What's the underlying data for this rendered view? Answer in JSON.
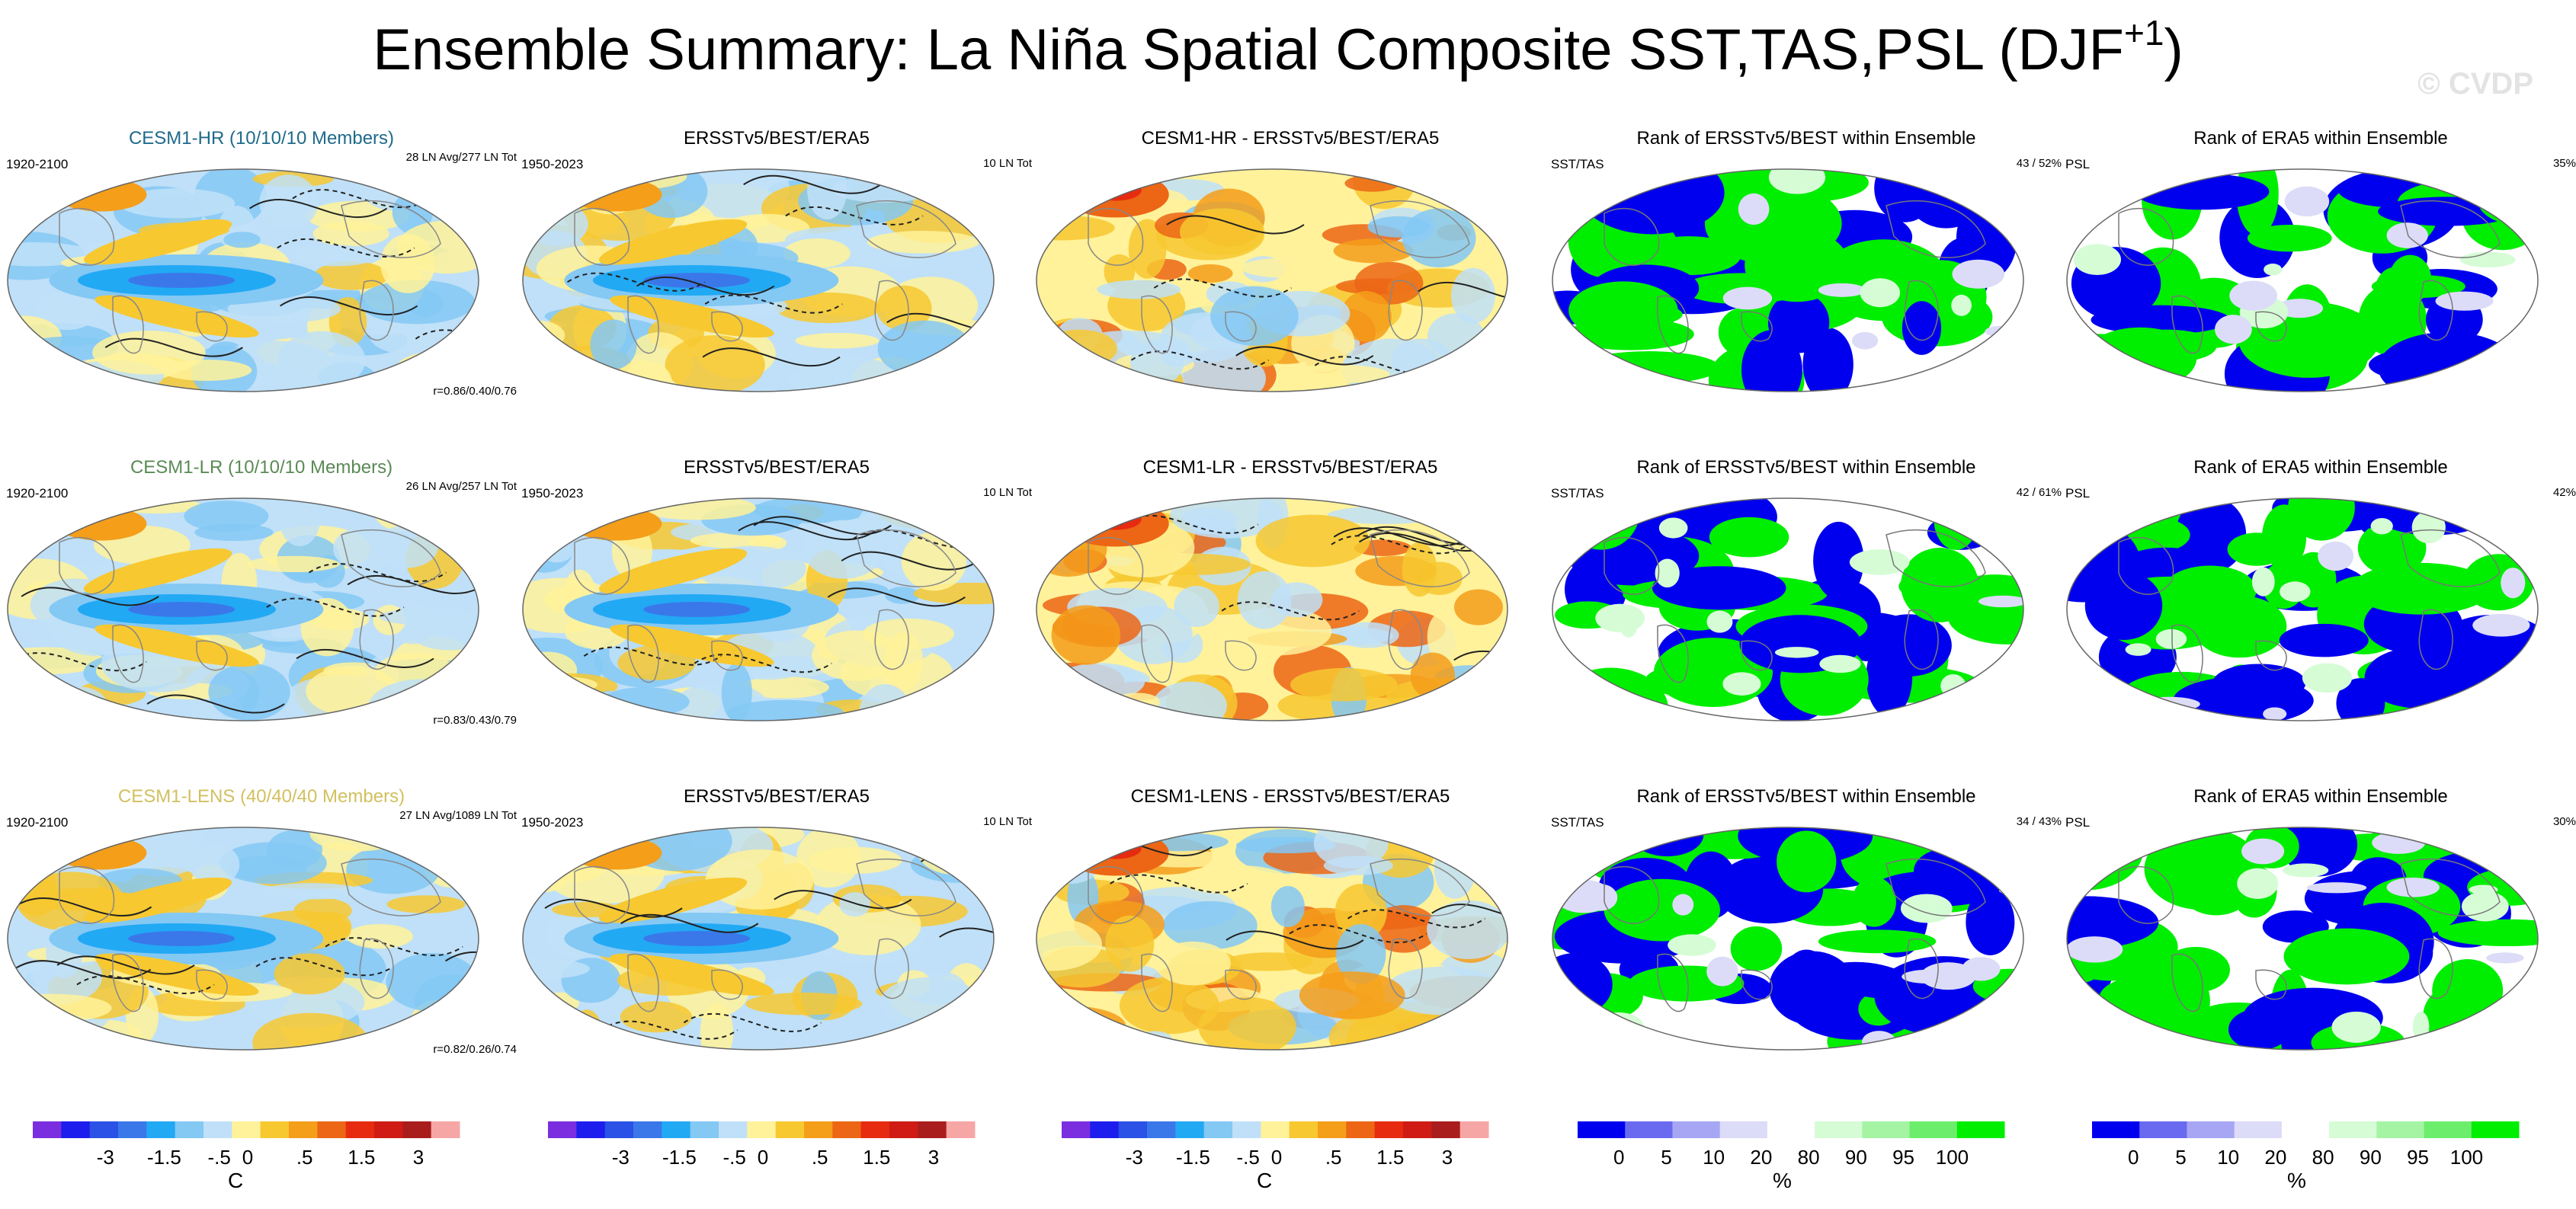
{
  "header": {
    "title": "Ensemble Summary: La Niña Spatial Composite SST,TAS,PSL (DJF",
    "title_sup": "+1",
    "title_close": ")",
    "watermark": "© CVDP"
  },
  "colors": {
    "anomaly_palette": [
      "#7b2ee0",
      "#1d1ded",
      "#2a52e6",
      "#3a78ea",
      "#22a9f4",
      "#84c8f4",
      "#bfe0f8",
      "#fff29a",
      "#f7c830",
      "#f49e1a",
      "#ec6615",
      "#e72b10",
      "#cf1b14",
      "#aa1d1d",
      "#f7a6a6"
    ],
    "rank_palette": [
      "#0000ee",
      "#6a6af0",
      "#a6a6f4",
      "#dcdcf8",
      "#ffffff",
      "#d6fcd6",
      "#a4f4a4",
      "#6cee6c",
      "#00ee00"
    ],
    "land": "#ffffff",
    "rank_low": "#0000ee",
    "rank_high": "#00ee00"
  },
  "rows": [
    {
      "model_label": "CESM1-HR (10/10/10 Members)",
      "model_color": "#1f6a8a",
      "panels": [
        {
          "title": "CESM1-HR (10/10/10 Members)",
          "left": "1920-2100",
          "right": "28 LN Avg/277 LN Tot",
          "corr": "r=0.86/0.40/0.76",
          "kind": "anomaly"
        },
        {
          "title": "ERSSTv5/BEST/ERA5",
          "left": "1950-2023",
          "right": "10 LN Tot",
          "corr": "",
          "kind": "anomaly"
        },
        {
          "title": "CESM1-HR - ERSSTv5/BEST/ERA5",
          "left": "",
          "right": "",
          "corr": "",
          "kind": "difference"
        },
        {
          "title": "Rank of ERSSTv5/BEST within Ensemble",
          "left": "SST/TAS",
          "right": "43 /  52%",
          "corr": "",
          "kind": "rank"
        },
        {
          "title": "Rank of ERA5 within Ensemble",
          "left": "PSL",
          "right": "35%",
          "corr": "",
          "kind": "rank-psl"
        }
      ]
    },
    {
      "model_label": "CESM1-LR (10/10/10 Members)",
      "model_color": "#5a8a55",
      "panels": [
        {
          "title": "CESM1-LR (10/10/10 Members)",
          "left": "1920-2100",
          "right": "26 LN Avg/257 LN Tot",
          "corr": "r=0.83/0.43/0.79",
          "kind": "anomaly"
        },
        {
          "title": "ERSSTv5/BEST/ERA5",
          "left": "1950-2023",
          "right": "10 LN Tot",
          "corr": "",
          "kind": "anomaly"
        },
        {
          "title": "CESM1-LR - ERSSTv5/BEST/ERA5",
          "left": "",
          "right": "",
          "corr": "",
          "kind": "difference"
        },
        {
          "title": "Rank of ERSSTv5/BEST within Ensemble",
          "left": "SST/TAS",
          "right": "42 /  61%",
          "corr": "",
          "kind": "rank"
        },
        {
          "title": "Rank of ERA5 within Ensemble",
          "left": "PSL",
          "right": "42%",
          "corr": "",
          "kind": "rank-psl"
        }
      ]
    },
    {
      "model_label": "CESM1-LENS (40/40/40 Members)",
      "model_color": "#d2c060",
      "panels": [
        {
          "title": "CESM1-LENS (40/40/40 Members)",
          "left": "1920-2100",
          "right": "27 LN Avg/1089 LN Tot",
          "corr": "r=0.82/0.26/0.74",
          "kind": "anomaly"
        },
        {
          "title": "ERSSTv5/BEST/ERA5",
          "left": "1950-2023",
          "right": "10 LN Tot",
          "corr": "",
          "kind": "anomaly"
        },
        {
          "title": "CESM1-LENS - ERSSTv5/BEST/ERA5",
          "left": "",
          "right": "",
          "corr": "",
          "kind": "difference"
        },
        {
          "title": "Rank of ERSSTv5/BEST within Ensemble",
          "left": "SST/TAS",
          "right": "34 /  43%",
          "corr": "",
          "kind": "rank"
        },
        {
          "title": "Rank of ERA5 within Ensemble",
          "left": "PSL",
          "right": "30%",
          "corr": "",
          "kind": "rank-psl"
        }
      ]
    }
  ],
  "colorbars": [
    {
      "kind": "anomaly",
      "labels": [
        "-3",
        "-1.5",
        "-.5",
        "0",
        ".5",
        "1.5",
        "3"
      ],
      "unit": "C"
    },
    {
      "kind": "anomaly",
      "labels": [
        "-3",
        "-1.5",
        "-.5",
        "0",
        ".5",
        "1.5",
        "3"
      ],
      "unit": ""
    },
    {
      "kind": "anomaly",
      "labels": [
        "-3",
        "-1.5",
        "-.5",
        "0",
        ".5",
        "1.5",
        "3"
      ],
      "unit": "C"
    },
    {
      "kind": "rank",
      "labels": [
        "0",
        "5",
        "10",
        "20",
        "80",
        "90",
        "95",
        "100"
      ],
      "unit": "%"
    },
    {
      "kind": "rank",
      "labels": [
        "0",
        "5",
        "10",
        "20",
        "80",
        "90",
        "95",
        "100"
      ],
      "unit": "%"
    }
  ],
  "chart_data": {
    "type": "heatmap",
    "title": "Ensemble Summary: La Niña Spatial Composite SST,TAS,PSL (DJF+1)",
    "projection": "Robinson-like global maps, 3 rows x 5 columns",
    "anomaly_levels_C": [
      -4,
      -3,
      -2,
      -1.5,
      -1,
      -0.5,
      -0.25,
      0,
      0.25,
      0.5,
      1,
      1.5,
      2,
      3,
      4
    ],
    "anomaly_tick_labels": [
      "-3",
      "-1.5",
      "-.5",
      "0",
      ".5",
      "1.5",
      "3"
    ],
    "rank_levels_pct": [
      0,
      5,
      10,
      20,
      80,
      90,
      95,
      100
    ],
    "rank_tick_labels": [
      "0",
      "5",
      "10",
      "20",
      "80",
      "90",
      "95",
      "100"
    ],
    "units": {
      "anomaly": "C",
      "rank": "%"
    },
    "rows": [
      {
        "model": "CESM1-HR",
        "members": "10/10/10",
        "ln_avg": 28,
        "ln_tot": 277,
        "pattern_corr": [
          0.86,
          0.4,
          0.76
        ],
        "obs_ln_tot": 10,
        "rank_sst_tas": [
          43,
          52
        ],
        "rank_psl": 35
      },
      {
        "model": "CESM1-LR",
        "members": "10/10/10",
        "ln_avg": 26,
        "ln_tot": 257,
        "pattern_corr": [
          0.83,
          0.43,
          0.79
        ],
        "obs_ln_tot": 10,
        "rank_sst_tas": [
          42,
          61
        ],
        "rank_psl": 42
      },
      {
        "model": "CESM1-LENS",
        "members": "40/40/40",
        "ln_avg": 27,
        "ln_tot": 1089,
        "pattern_corr": [
          0.82,
          0.26,
          0.74
        ],
        "obs_ln_tot": 10,
        "rank_sst_tas": [
          34,
          43
        ],
        "rank_psl": 30
      }
    ],
    "periods": {
      "model": "1920-2100",
      "observations": "1950-2023"
    }
  }
}
